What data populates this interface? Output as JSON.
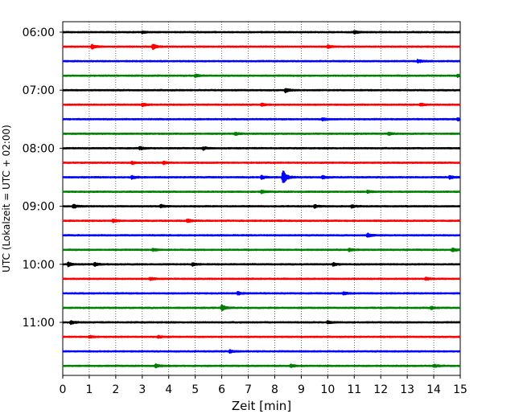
{
  "chart_data": {
    "type": "line",
    "title": "",
    "xlabel": "Zeit  [min]",
    "ylabel": "UTC (Lokalzeit = UTC + 02:00)",
    "xlim": [
      0,
      15
    ],
    "x_ticks": [
      0,
      1,
      2,
      3,
      4,
      5,
      6,
      7,
      8,
      9,
      10,
      11,
      12,
      13,
      14,
      15
    ],
    "x_tick_labels": [
      "0",
      "1",
      "2",
      "3",
      "4",
      "5",
      "6",
      "7",
      "8",
      "9",
      "10",
      "11",
      "12",
      "13",
      "14",
      "15"
    ],
    "row_duration_min": 15,
    "y_tick_labels": [
      "06:00",
      "07:00",
      "08:00",
      "09:00",
      "10:00",
      "11:00"
    ],
    "y_tick_rows": [
      0,
      4,
      8,
      12,
      16,
      20
    ],
    "grid": "vertical-dotted",
    "color_cycle": [
      "#000000",
      "#ff0000",
      "#0000ff",
      "#008000"
    ],
    "rows": [
      {
        "start": "06:00",
        "color": "#000000",
        "events": [
          [
            3.0,
            0.25
          ],
          [
            11.0,
            0.35
          ]
        ]
      },
      {
        "start": "06:15",
        "color": "#ff0000",
        "events": [
          [
            1.1,
            0.45
          ],
          [
            3.4,
            0.55
          ],
          [
            10.0,
            0.3
          ]
        ]
      },
      {
        "start": "06:30",
        "color": "#0000ff",
        "events": [
          [
            13.4,
            0.35
          ]
        ]
      },
      {
        "start": "06:45",
        "color": "#008000",
        "events": [
          [
            5.0,
            0.3
          ],
          [
            14.9,
            0.3
          ]
        ]
      },
      {
        "start": "07:00",
        "color": "#000000",
        "events": [
          [
            8.4,
            0.4
          ]
        ]
      },
      {
        "start": "07:15",
        "color": "#ff0000",
        "events": [
          [
            3.0,
            0.35
          ],
          [
            7.5,
            0.3
          ],
          [
            13.5,
            0.3
          ]
        ]
      },
      {
        "start": "07:30",
        "color": "#0000ff",
        "events": [
          [
            9.8,
            0.25
          ],
          [
            14.9,
            0.3
          ]
        ]
      },
      {
        "start": "07:45",
        "color": "#008000",
        "events": [
          [
            6.5,
            0.3
          ],
          [
            12.3,
            0.3
          ]
        ]
      },
      {
        "start": "08:00",
        "color": "#000000",
        "events": [
          [
            2.9,
            0.3
          ],
          [
            5.3,
            0.3
          ]
        ]
      },
      {
        "start": "08:15",
        "color": "#ff0000",
        "events": [
          [
            2.6,
            0.3
          ],
          [
            3.8,
            0.25
          ]
        ]
      },
      {
        "start": "08:30",
        "color": "#0000ff",
        "events": [
          [
            2.6,
            0.35
          ],
          [
            7.5,
            0.35
          ],
          [
            8.3,
            1.6
          ],
          [
            9.8,
            0.3
          ],
          [
            14.6,
            0.35
          ]
        ]
      },
      {
        "start": "08:45",
        "color": "#008000",
        "events": [
          [
            7.5,
            0.3
          ],
          [
            11.5,
            0.25
          ]
        ]
      },
      {
        "start": "09:00",
        "color": "#000000",
        "events": [
          [
            0.4,
            0.4
          ],
          [
            3.7,
            0.3
          ],
          [
            9.5,
            0.3
          ],
          [
            10.9,
            0.3
          ]
        ]
      },
      {
        "start": "09:15",
        "color": "#ff0000",
        "events": [
          [
            1.9,
            0.35
          ],
          [
            4.7,
            0.35
          ]
        ]
      },
      {
        "start": "09:30",
        "color": "#0000ff",
        "events": [
          [
            11.5,
            0.4
          ]
        ]
      },
      {
        "start": "09:45",
        "color": "#008000",
        "events": [
          [
            3.4,
            0.3
          ],
          [
            10.8,
            0.3
          ],
          [
            14.7,
            0.4
          ]
        ]
      },
      {
        "start": "10:00",
        "color": "#000000",
        "events": [
          [
            0.2,
            0.4
          ],
          [
            1.2,
            0.35
          ],
          [
            4.9,
            0.3
          ],
          [
            10.2,
            0.3
          ]
        ]
      },
      {
        "start": "10:15",
        "color": "#ff0000",
        "events": [
          [
            3.3,
            0.3
          ],
          [
            13.7,
            0.3
          ]
        ]
      },
      {
        "start": "10:30",
        "color": "#0000ff",
        "events": [
          [
            6.6,
            0.3
          ],
          [
            10.6,
            0.3
          ]
        ]
      },
      {
        "start": "10:45",
        "color": "#008000",
        "events": [
          [
            6.0,
            0.6
          ],
          [
            13.9,
            0.3
          ]
        ]
      },
      {
        "start": "11:00",
        "color": "#000000",
        "events": [
          [
            0.3,
            0.35
          ],
          [
            10.0,
            0.3
          ]
        ]
      },
      {
        "start": "11:15",
        "color": "#ff0000",
        "events": [
          [
            1.0,
            0.3
          ],
          [
            3.6,
            0.25
          ]
        ]
      },
      {
        "start": "11:30",
        "color": "#0000ff",
        "events": [
          [
            6.3,
            0.3
          ]
        ]
      },
      {
        "start": "11:45",
        "color": "#008000",
        "events": [
          [
            3.5,
            0.35
          ],
          [
            8.6,
            0.3
          ],
          [
            14.0,
            0.3
          ]
        ]
      }
    ]
  }
}
